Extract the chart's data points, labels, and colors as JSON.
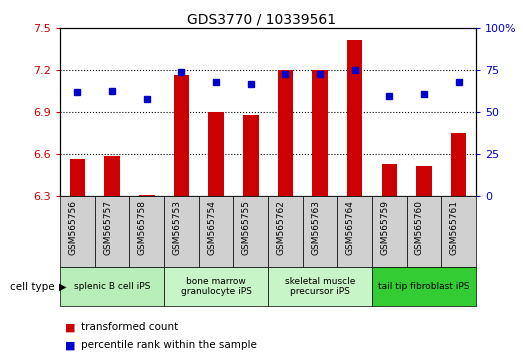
{
  "title": "GDS3770 / 10339561",
  "samples": [
    "GSM565756",
    "GSM565757",
    "GSM565758",
    "GSM565753",
    "GSM565754",
    "GSM565755",
    "GSM565762",
    "GSM565763",
    "GSM565764",
    "GSM565759",
    "GSM565760",
    "GSM565761"
  ],
  "red_values": [
    6.57,
    6.59,
    6.31,
    7.17,
    6.9,
    6.88,
    7.2,
    7.2,
    7.42,
    6.53,
    6.52,
    6.75
  ],
  "blue_values": [
    62,
    63,
    58,
    74,
    68,
    67,
    73,
    73,
    75,
    60,
    61,
    68
  ],
  "ylim_left": [
    6.3,
    7.5
  ],
  "ylim_right": [
    0,
    100
  ],
  "yticks_left": [
    6.3,
    6.6,
    6.9,
    7.2,
    7.5
  ],
  "yticks_right": [
    0,
    25,
    50,
    75,
    100
  ],
  "ytick_labels_left": [
    "6.3",
    "6.6",
    "6.9",
    "7.2",
    "7.5"
  ],
  "ytick_labels_right": [
    "0",
    "25",
    "50",
    "75",
    "100%"
  ],
  "cell_groups": [
    {
      "label": "splenic B cell iPS",
      "start": 0,
      "end": 3,
      "color": "#c8f0c8"
    },
    {
      "label": "bone marrow\ngranulocyte iPS",
      "start": 3,
      "end": 6,
      "color": "#d8f5d8"
    },
    {
      "label": "skeletal muscle\nprecursor iPS",
      "start": 6,
      "end": 9,
      "color": "#d8f5d8"
    },
    {
      "label": "tail tip fibroblast iPS",
      "start": 9,
      "end": 12,
      "color": "#44dd44"
    }
  ],
  "bar_color": "#cc0000",
  "dot_color": "#0000cc",
  "bar_bottom": 6.3,
  "tick_color_left": "#cc0000",
  "tick_color_right": "#0000cc",
  "legend_red": "transformed count",
  "legend_blue": "percentile rank within the sample",
  "xlabel": "cell type",
  "sample_bg": "#d0d0d0",
  "plot_bg": "#ffffff",
  "gridline_color": "#000000",
  "gridline_style": "dotted",
  "gridline_lw": 0.8,
  "bar_width": 0.45
}
